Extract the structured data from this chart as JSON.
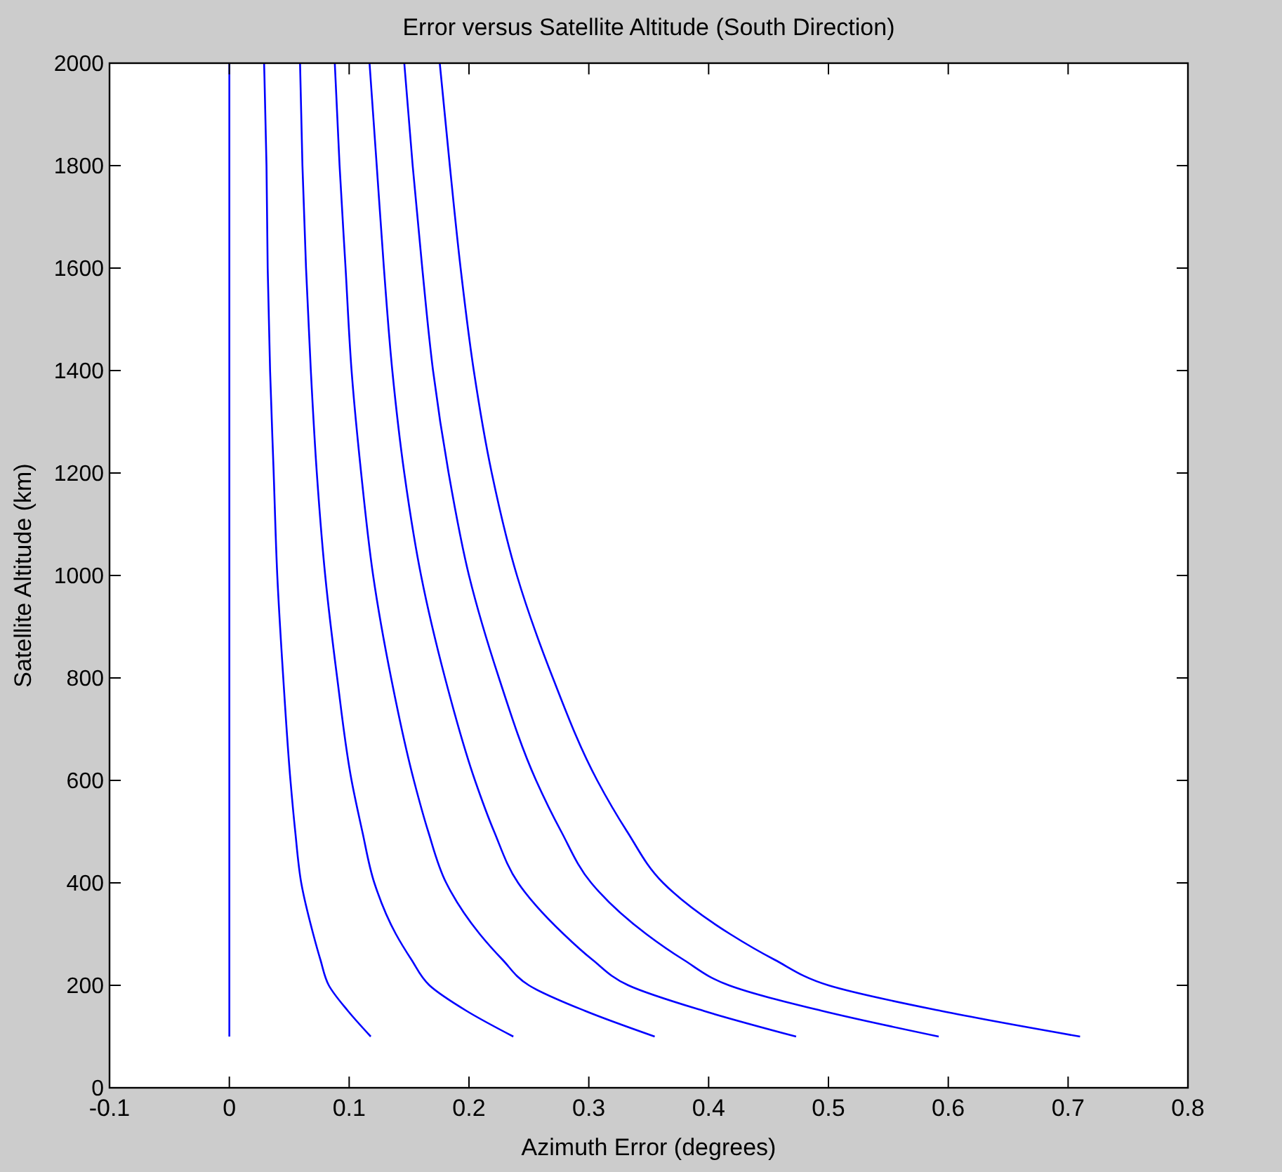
{
  "chart_data": {
    "type": "line",
    "title": "Error versus Satellite Altitude (South Direction)",
    "xlabel": "Azimuth Error (degrees)",
    "ylabel": "Satellite Altitude (km)",
    "xlim": [
      -0.1,
      0.8
    ],
    "xticks": [
      -0.1,
      0,
      0.1,
      0.2,
      0.3,
      0.4,
      0.5,
      0.6,
      0.7,
      0.8
    ],
    "ylim": [
      0,
      2000
    ],
    "yticks": [
      0,
      200,
      400,
      600,
      800,
      1000,
      1200,
      1400,
      1600,
      1800,
      2000
    ],
    "line_style": "solid",
    "series": [
      {
        "color": "#0000ff",
        "x": [
          0,
          0
        ],
        "values": [
          100,
          2000
        ]
      },
      {
        "color": "#0000ff",
        "x": [
          0.118,
          0.099,
          0.083,
          0.076,
          0.07,
          0.06,
          0.055,
          0.051,
          0.045,
          0.04,
          0.037,
          0.034,
          0.032,
          0.031,
          0.029
        ],
        "values": [
          100,
          150,
          200,
          250,
          300,
          400,
          500,
          600,
          800,
          1000,
          1200,
          1400,
          1600,
          1800,
          2000
        ]
      },
      {
        "color": "#0000ff",
        "x": [
          0.237,
          0.198,
          0.167,
          0.152,
          0.139,
          0.121,
          0.111,
          0.102,
          0.09,
          0.08,
          0.073,
          0.068,
          0.064,
          0.061,
          0.059
        ],
        "values": [
          100,
          150,
          200,
          250,
          300,
          400,
          500,
          600,
          800,
          1000,
          1200,
          1400,
          1600,
          1800,
          2000
        ]
      },
      {
        "color": "#0000ff",
        "x": [
          0.355,
          0.297,
          0.25,
          0.228,
          0.209,
          0.181,
          0.166,
          0.154,
          0.135,
          0.12,
          0.11,
          0.102,
          0.097,
          0.092,
          0.088
        ],
        "values": [
          100,
          150,
          200,
          250,
          300,
          400,
          500,
          600,
          800,
          1000,
          1200,
          1400,
          1600,
          1800,
          2000
        ]
      },
      {
        "color": "#0000ff",
        "x": [
          0.473,
          0.396,
          0.333,
          0.303,
          0.279,
          0.241,
          0.221,
          0.205,
          0.18,
          0.16,
          0.146,
          0.136,
          0.129,
          0.123,
          0.117
        ],
        "values": [
          100,
          150,
          200,
          250,
          300,
          400,
          500,
          600,
          800,
          1000,
          1200,
          1400,
          1600,
          1800,
          2000
        ]
      },
      {
        "color": "#0000ff",
        "x": [
          0.592,
          0.495,
          0.417,
          0.379,
          0.348,
          0.302,
          0.277,
          0.256,
          0.225,
          0.2,
          0.183,
          0.17,
          0.161,
          0.153,
          0.146
        ],
        "values": [
          100,
          150,
          200,
          250,
          300,
          400,
          500,
          600,
          800,
          1000,
          1200,
          1400,
          1600,
          1800,
          2000
        ]
      },
      {
        "color": "#0000ff",
        "x": [
          0.71,
          0.594,
          0.5,
          0.455,
          0.418,
          0.362,
          0.332,
          0.307,
          0.27,
          0.24,
          0.219,
          0.204,
          0.193,
          0.184,
          0.1756
        ],
        "values": [
          100,
          150,
          200,
          250,
          300,
          400,
          500,
          600,
          800,
          1000,
          1200,
          1400,
          1600,
          1800,
          2000
        ]
      }
    ]
  }
}
